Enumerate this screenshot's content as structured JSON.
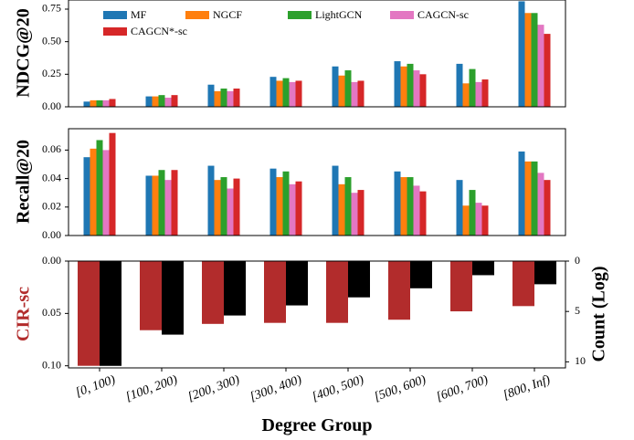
{
  "categories": [
    "[0, 100)",
    "[100, 200)",
    "[200, 300)",
    "[300, 400)",
    "[400, 500)",
    "[500, 600)",
    "[600, 700)",
    "[800, Inf)"
  ],
  "xlabel": "Degree Group",
  "legend": [
    "MF",
    "NGCF",
    "LightGCN",
    "CAGCN-sc",
    "CAGCN*-sc"
  ],
  "colors": {
    "MF": "#1f77b4",
    "NGCF": "#ff7f0e",
    "LightGCN": "#2ca02c",
    "CAGCN-sc": "#e377c2",
    "CAGCN*-sc": "#d62728",
    "cir": "#b22c2c",
    "count": "#000000",
    "cir_label": "#b22c2c"
  },
  "chart_data": [
    {
      "type": "bar",
      "ylabel": "NDCG@20",
      "ylim": [
        0,
        0.82
      ],
      "yticks": [
        0,
        0.25,
        0.5,
        0.75
      ],
      "ytick_labels": [
        "0.00",
        "0.25",
        "0.50",
        "0.75"
      ],
      "legend_position": "top-left",
      "series": [
        {
          "name": "MF",
          "values": [
            0.04,
            0.08,
            0.17,
            0.23,
            0.31,
            0.35,
            0.33,
            0.81
          ]
        },
        {
          "name": "NGCF",
          "values": [
            0.05,
            0.08,
            0.12,
            0.2,
            0.24,
            0.31,
            0.18,
            0.72
          ]
        },
        {
          "name": "LightGCN",
          "values": [
            0.05,
            0.09,
            0.14,
            0.22,
            0.28,
            0.33,
            0.29,
            0.72
          ]
        },
        {
          "name": "CAGCN-sc",
          "values": [
            0.05,
            0.07,
            0.12,
            0.19,
            0.19,
            0.28,
            0.19,
            0.63
          ]
        },
        {
          "name": "CAGCN*-sc",
          "values": [
            0.06,
            0.09,
            0.14,
            0.2,
            0.2,
            0.25,
            0.21,
            0.56
          ]
        }
      ]
    },
    {
      "type": "bar",
      "ylabel": "Recall@20",
      "ylim": [
        0,
        0.075
      ],
      "yticks": [
        0,
        0.02,
        0.04,
        0.06
      ],
      "ytick_labels": [
        "0.00",
        "0.02",
        "0.04",
        "0.06"
      ],
      "series": [
        {
          "name": "MF",
          "values": [
            0.055,
            0.042,
            0.049,
            0.047,
            0.049,
            0.045,
            0.039,
            0.059
          ]
        },
        {
          "name": "NGCF",
          "values": [
            0.061,
            0.042,
            0.039,
            0.041,
            0.036,
            0.041,
            0.021,
            0.052
          ]
        },
        {
          "name": "LightGCN",
          "values": [
            0.067,
            0.046,
            0.041,
            0.045,
            0.041,
            0.041,
            0.032,
            0.052
          ]
        },
        {
          "name": "CAGCN-sc",
          "values": [
            0.06,
            0.039,
            0.033,
            0.036,
            0.03,
            0.035,
            0.023,
            0.044
          ]
        },
        {
          "name": "CAGCN*-sc",
          "values": [
            0.072,
            0.046,
            0.04,
            0.038,
            0.032,
            0.031,
            0.021,
            0.039
          ]
        }
      ]
    },
    {
      "type": "bar",
      "ylabel": "CIR-sc",
      "ylabel_right": "Count (Log)",
      "ylim": [
        0,
        0.102
      ],
      "yticks": [
        0,
        0.05,
        0.1
      ],
      "ytick_labels": [
        "0.00",
        "0.05",
        "0.10"
      ],
      "y_inverted": true,
      "y2lim": [
        0,
        10.6
      ],
      "y2ticks": [
        0,
        5,
        10
      ],
      "y2tick_labels": [
        "0",
        "5",
        "10"
      ],
      "series": [
        {
          "name": "CIR-sc",
          "values": [
            0.1,
            0.066,
            0.06,
            0.059,
            0.059,
            0.056,
            0.048,
            0.043
          ]
        },
        {
          "name": "Count",
          "values": [
            10.4,
            7.3,
            5.4,
            4.4,
            3.6,
            2.7,
            1.4,
            2.3
          ]
        }
      ]
    }
  ]
}
